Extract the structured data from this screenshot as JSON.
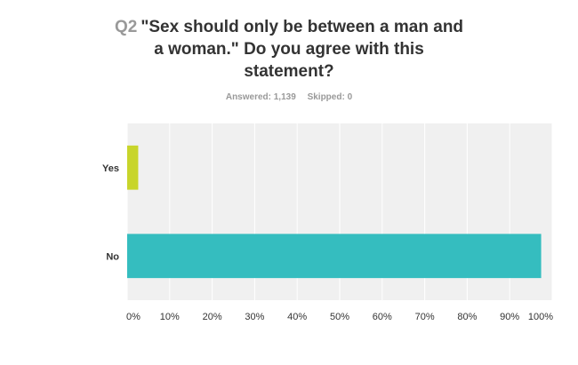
{
  "question": {
    "number": "Q2",
    "text_line1": "\"Sex should only be between a man and",
    "text_line2": "a woman.\" Do you agree with this",
    "text_line3": "statement?"
  },
  "summary": {
    "answered": "Answered: 1,139",
    "skipped": "Skipped: 0"
  },
  "chart_data": {
    "type": "bar",
    "orientation": "horizontal",
    "categories": [
      "Yes",
      "No"
    ],
    "values": [
      2.6,
      97.4
    ],
    "xlim": [
      0,
      100
    ],
    "x_ticks": [
      "0%",
      "10%",
      "20%",
      "30%",
      "40%",
      "50%",
      "60%",
      "70%",
      "80%",
      "90%",
      "100%"
    ],
    "grid": true,
    "colors": {
      "Yes": "#c8d52b",
      "No": "#35bdbf",
      "plot_background": "#f0f0f0",
      "grid": "#ffffff"
    }
  }
}
